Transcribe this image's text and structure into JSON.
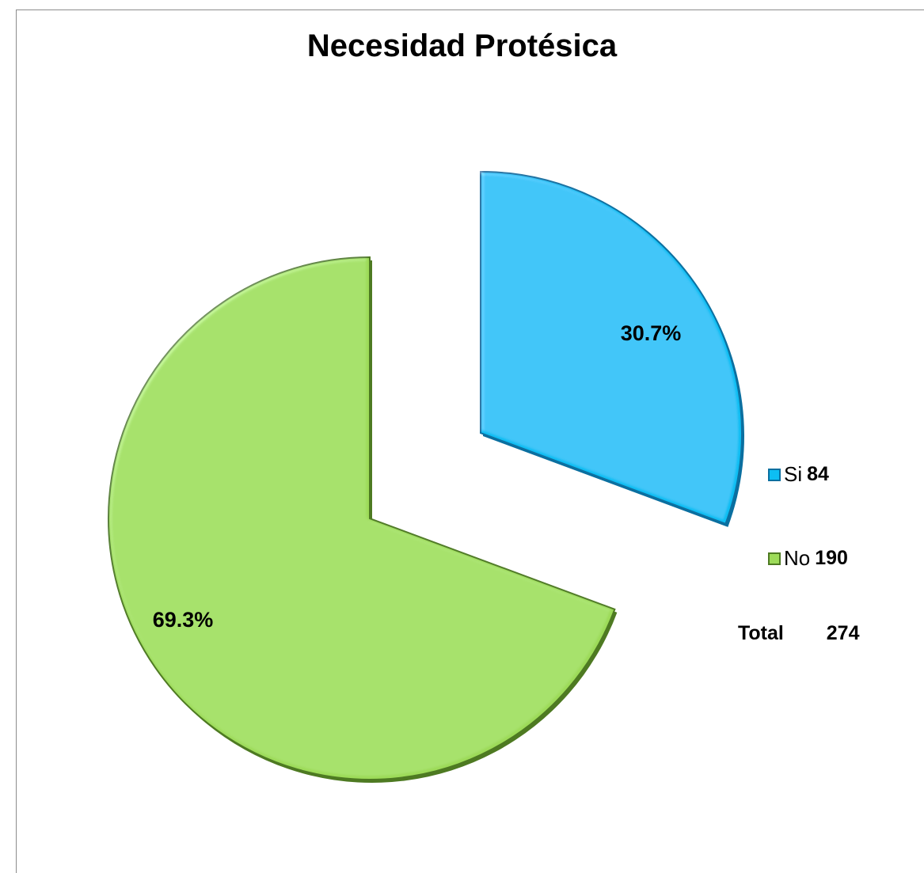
{
  "chart_data": {
    "type": "pie",
    "title": "Necesidad Protésica",
    "categories": [
      "Si",
      "No"
    ],
    "values": [
      84,
      190
    ],
    "percent_labels": [
      "30.7%",
      "69.3%"
    ],
    "colors": [
      "#0dbef3",
      "#9ddb59"
    ],
    "edge_colors": [
      "#0a6fa0",
      "#4e7a22"
    ],
    "exploded": true,
    "legend_position": "right",
    "total_label": "Total",
    "total_value": "274"
  }
}
